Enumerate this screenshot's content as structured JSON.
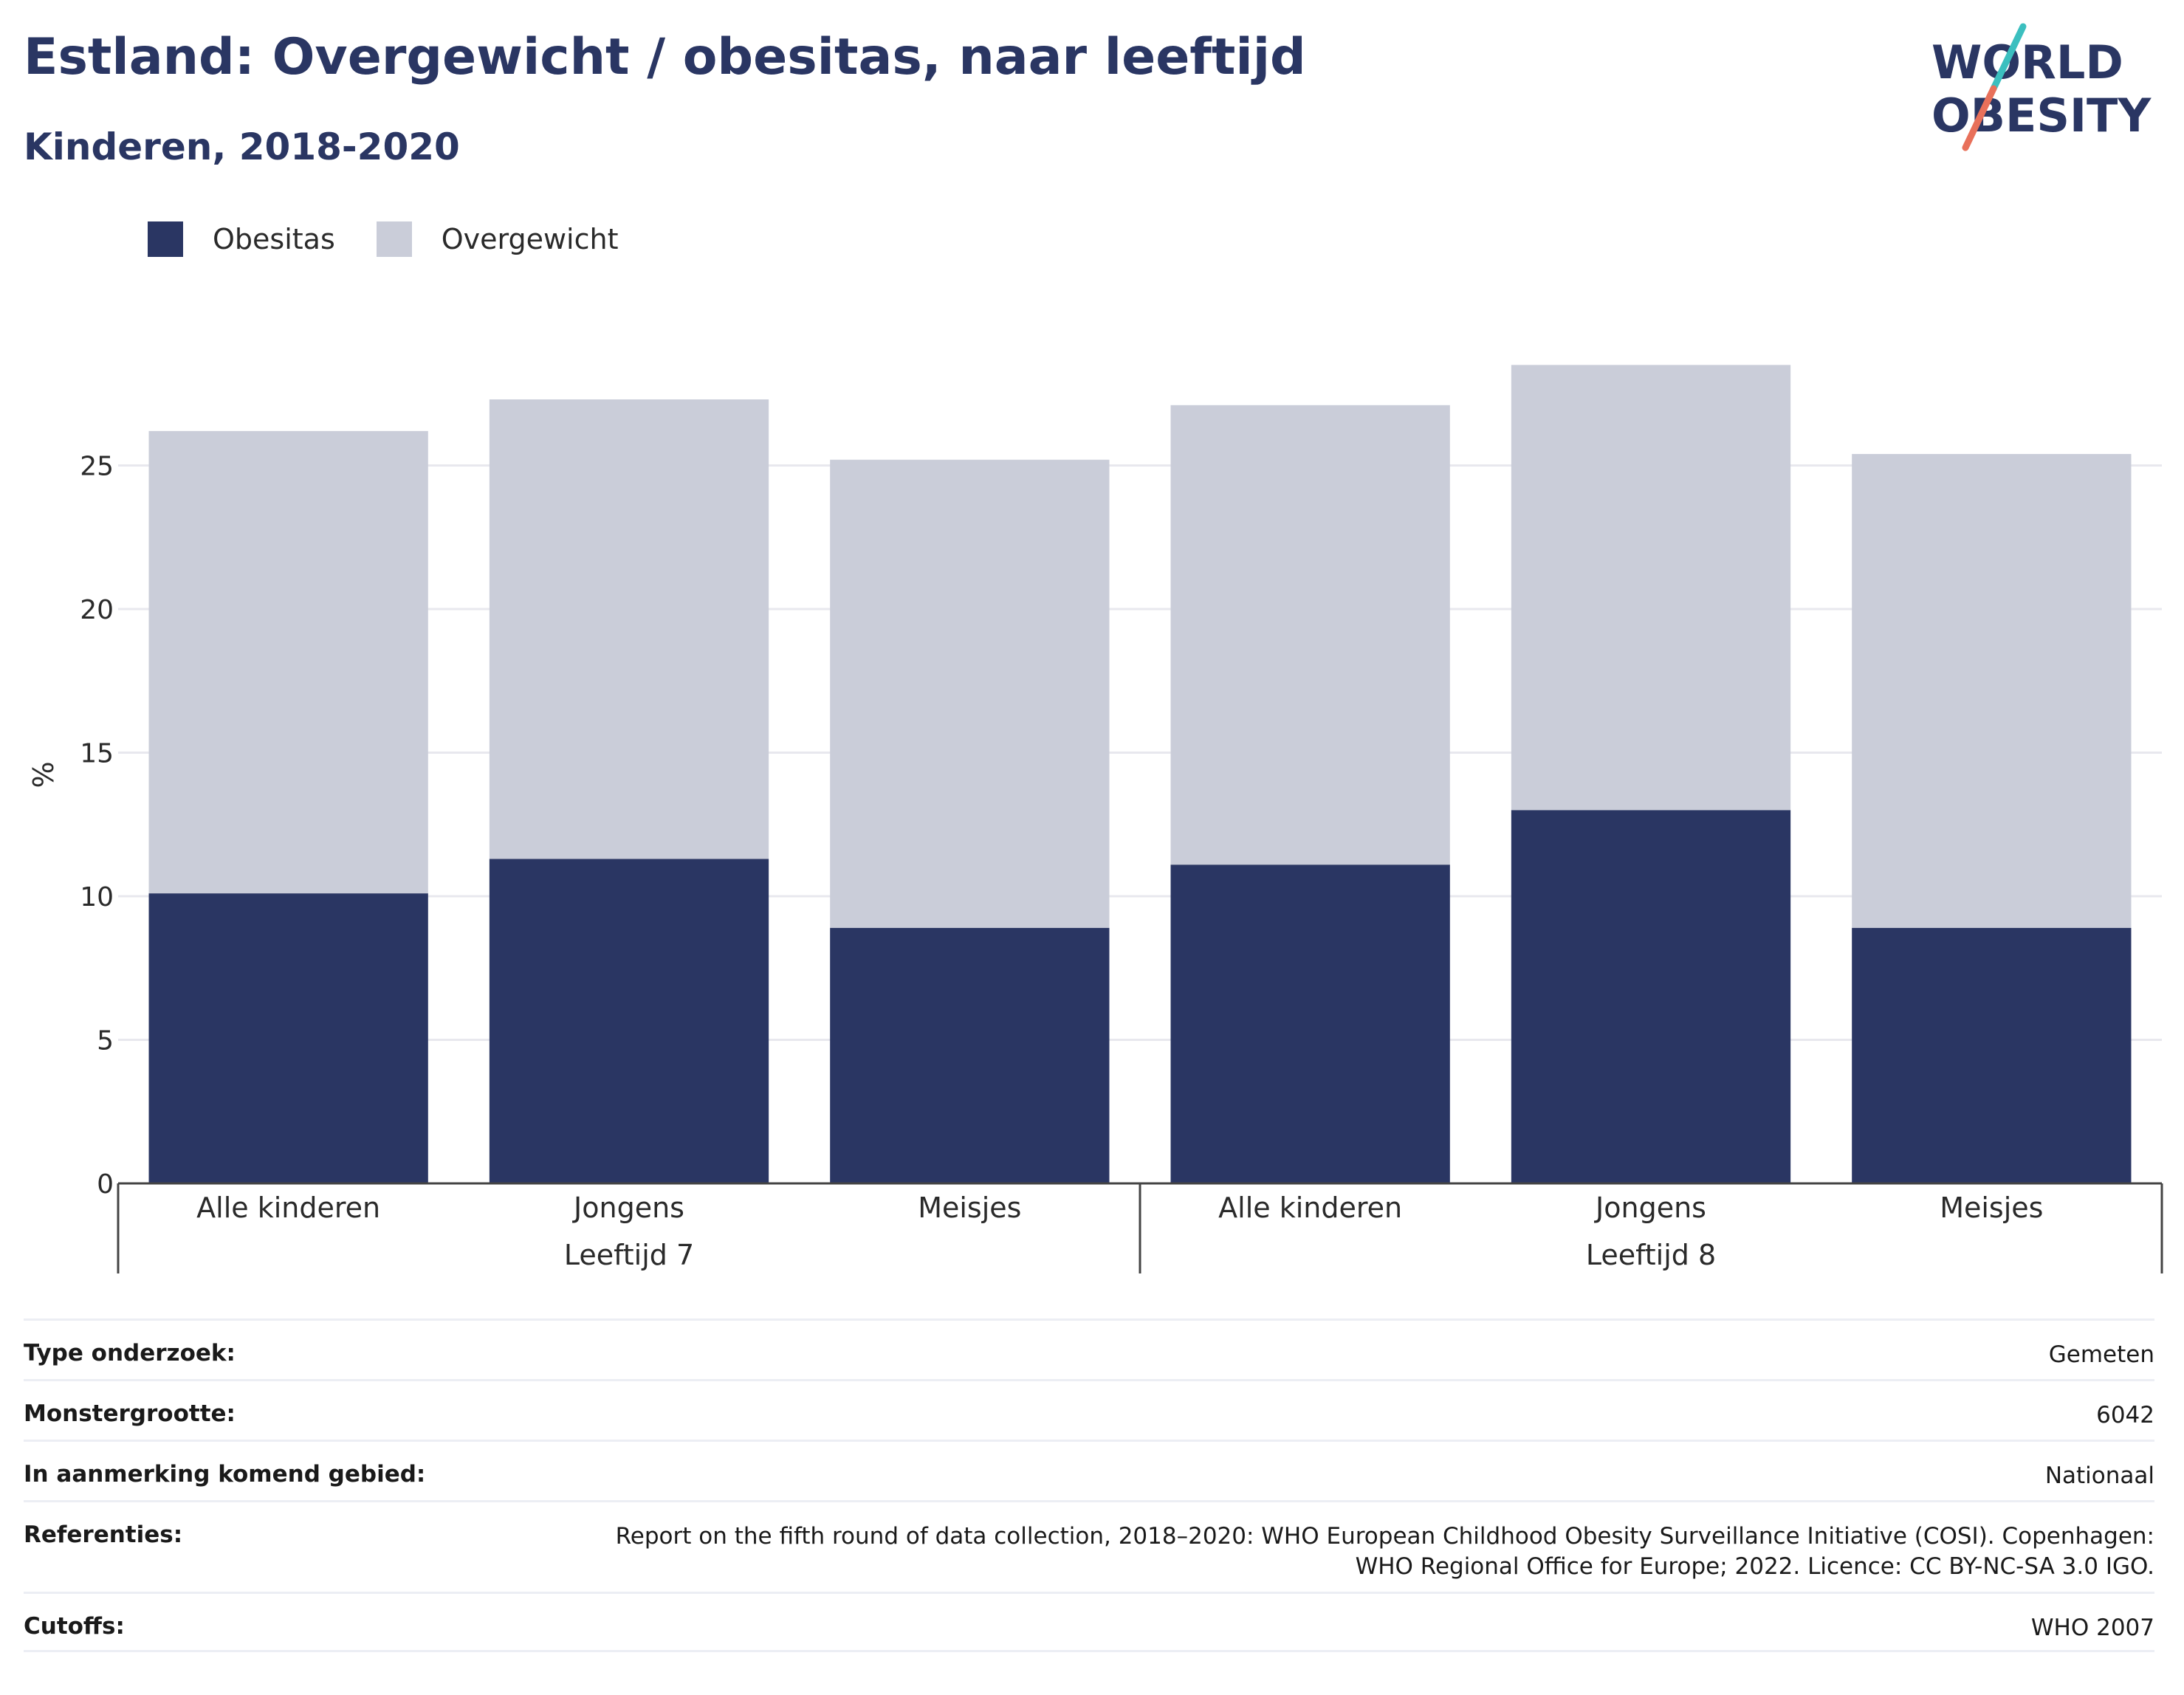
{
  "header": {
    "title": "Estland: Overgewicht / obesitas, naar leeftijd",
    "subtitle": "Kinderen, 2018-2020"
  },
  "logo": {
    "line1": "WORLD",
    "line2": "OBESITY",
    "accent_top": "#3bbfbf",
    "accent_bottom": "#e8705a"
  },
  "colors": {
    "obesitas": "#2a3663",
    "overgewicht": "#cacdd9",
    "grid": "#e8e8ee",
    "axis": "#444444"
  },
  "legend": [
    {
      "label": "Obesitas",
      "color": "#2a3663"
    },
    {
      "label": "Overgewicht",
      "color": "#cacdd9"
    }
  ],
  "chart_data": {
    "type": "bar",
    "stacked": true,
    "ylabel": "%",
    "ylim": [
      0,
      30
    ],
    "yticks": [
      0,
      5,
      10,
      15,
      20,
      25
    ],
    "grid": true,
    "legend_position": "top-left",
    "groups": [
      {
        "label": "Leeftijd 7",
        "categories": [
          "Alle kinderen",
          "Jongens",
          "Meisjes"
        ]
      },
      {
        "label": "Leeftijd 8",
        "categories": [
          "Alle kinderen",
          "Jongens",
          "Meisjes"
        ]
      }
    ],
    "series": [
      {
        "name": "Obesitas",
        "values": [
          10.1,
          11.3,
          8.9,
          11.1,
          13.0,
          8.9
        ]
      },
      {
        "name": "Overgewicht",
        "values": [
          16.1,
          16.0,
          16.3,
          16.0,
          15.5,
          16.5
        ]
      }
    ]
  },
  "info": [
    {
      "key": "Type onderzoek:",
      "value": [
        "Gemeten"
      ]
    },
    {
      "key": "Monstergrootte:",
      "value": [
        "6042"
      ]
    },
    {
      "key": "In aanmerking komend gebied:",
      "value": [
        "Nationaal"
      ]
    },
    {
      "key": "Referenties:",
      "value": [
        "Report on the fifth round of data collection, 2018–2020: WHO European Childhood Obesity Surveillance Initiative (COSI). Copenhagen:",
        "WHO Regional Office for Europe; 2022. Licence: CC BY-NC-SA 3.0 IGO."
      ]
    },
    {
      "key": "Cutoffs:",
      "value": [
        "WHO 2007"
      ]
    }
  ]
}
